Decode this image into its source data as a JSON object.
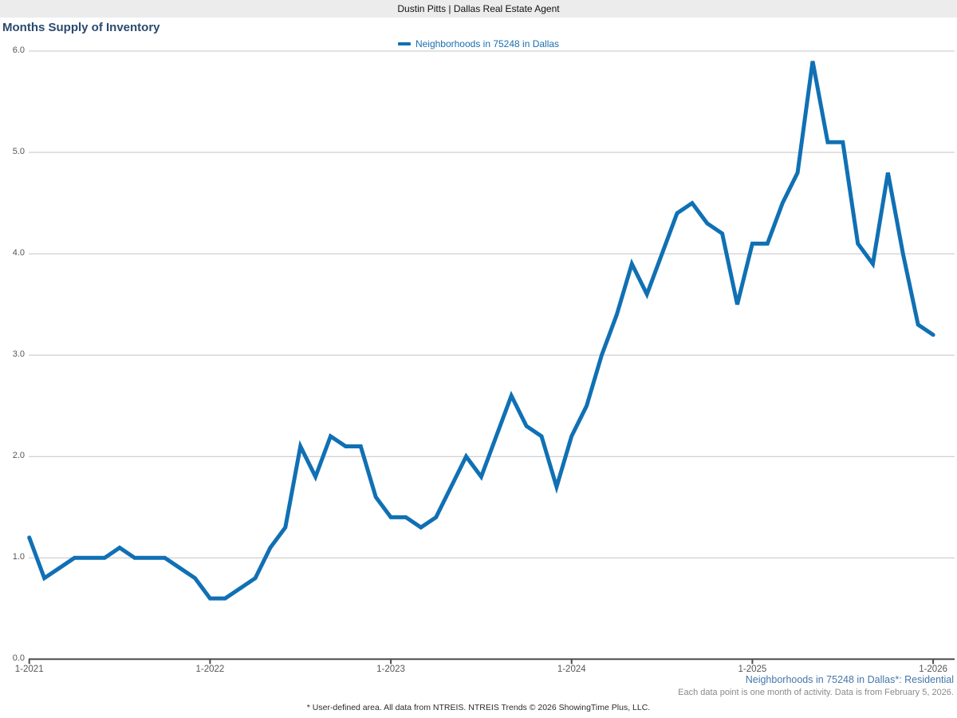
{
  "header": {
    "bar_text": "Dustin Pitts | Dallas Real Estate Agent"
  },
  "title": "Months Supply of Inventory",
  "legend": {
    "label": "Neighborhoods in 75248 in Dallas",
    "swatch_color": "#1070b4"
  },
  "footer": {
    "series_note": "Neighborhoods in 75248 in Dallas*: Residential",
    "data_note": "Each data point is one month of activity. Data is from February 5, 2026.",
    "disclaimer": "* User-defined area. All data from NTREIS. NTREIS Trends © 2026 ShowingTime Plus, LLC."
  },
  "colors": {
    "line": "#1070b4",
    "gridline": "#c4c4c4",
    "axis": "#4d4d4d",
    "topbar_bg": "#ececec",
    "title_text": "#2a4a6e",
    "legend_text": "#1a6fae",
    "attribution_blue": "#4576ab",
    "note_gray": "#8a8a8a"
  },
  "chart_data": {
    "type": "line",
    "title": "Months Supply of Inventory",
    "grid": true,
    "legend_position": "top-center",
    "ylim": [
      0,
      6
    ],
    "y_ticks": [
      "0.0",
      "1.0",
      "2.0",
      "3.0",
      "4.0",
      "5.0",
      "6.0"
    ],
    "x_tick_labels": [
      "1-2021",
      "1-2022",
      "1-2023",
      "1-2024",
      "1-2025",
      "1-2026"
    ],
    "categories": [
      "1-2021",
      "2-2021",
      "3-2021",
      "4-2021",
      "5-2021",
      "6-2021",
      "7-2021",
      "8-2021",
      "9-2021",
      "10-2021",
      "11-2021",
      "12-2021",
      "1-2022",
      "2-2022",
      "3-2022",
      "4-2022",
      "5-2022",
      "6-2022",
      "7-2022",
      "8-2022",
      "9-2022",
      "10-2022",
      "11-2022",
      "12-2022",
      "1-2023",
      "2-2023",
      "3-2023",
      "4-2023",
      "5-2023",
      "6-2023",
      "7-2023",
      "8-2023",
      "9-2023",
      "10-2023",
      "11-2023",
      "12-2023",
      "1-2024",
      "2-2024",
      "3-2024",
      "4-2024",
      "5-2024",
      "6-2024",
      "7-2024",
      "8-2024",
      "9-2024",
      "10-2024",
      "11-2024",
      "12-2024",
      "1-2025",
      "2-2025",
      "3-2025",
      "4-2025",
      "5-2025",
      "6-2025",
      "7-2025",
      "8-2025",
      "9-2025",
      "10-2025",
      "11-2025",
      "12-2025",
      "1-2026"
    ],
    "series": [
      {
        "name": "Neighborhoods in 75248 in Dallas",
        "color": "#1070b4",
        "values": [
          1.2,
          0.8,
          0.9,
          1.0,
          1.0,
          1.0,
          1.1,
          1.0,
          1.0,
          1.0,
          0.9,
          0.8,
          0.6,
          0.6,
          0.7,
          0.8,
          1.1,
          1.3,
          2.1,
          1.8,
          2.2,
          2.1,
          2.1,
          1.6,
          1.4,
          1.4,
          1.3,
          1.4,
          1.7,
          2.0,
          1.8,
          2.2,
          2.6,
          2.3,
          2.2,
          1.7,
          2.2,
          2.5,
          3.0,
          3.4,
          3.9,
          3.6,
          4.0,
          4.4,
          4.5,
          4.3,
          4.2,
          3.5,
          4.1,
          4.1,
          4.5,
          4.8,
          5.9,
          5.1,
          5.1,
          4.1,
          3.9,
          4.8,
          4.0,
          3.3,
          3.2
        ]
      }
    ]
  }
}
